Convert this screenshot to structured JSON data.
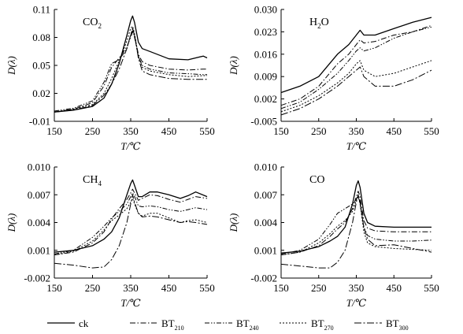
{
  "chart_data": [
    {
      "type": "line",
      "title": "CO2",
      "title_parts": {
        "main": "CO",
        "sub": "2"
      },
      "xlabel": "T/℃",
      "ylabel": "D(λ)",
      "xlim": [
        150,
        550
      ],
      "ylim": [
        -0.01,
        0.11
      ],
      "xticks": [
        "150",
        "250",
        "350",
        "450",
        "550"
      ],
      "yticks": [
        "-0.01",
        "0.02",
        "0.05",
        "0.08",
        "0.11"
      ],
      "x": [
        150,
        200,
        250,
        280,
        300,
        320,
        340,
        350,
        355,
        360,
        370,
        380,
        400,
        450,
        500,
        540,
        550
      ],
      "series": [
        {
          "name": "ck",
          "dash": "solid",
          "values": [
            0.0,
            0.002,
            0.006,
            0.015,
            0.03,
            0.052,
            0.082,
            0.098,
            0.103,
            0.096,
            0.075,
            0.068,
            0.065,
            0.057,
            0.056,
            0.06,
            0.058
          ]
        },
        {
          "name": "BT210",
          "dash": "dashdot",
          "values": [
            0.0,
            0.003,
            0.01,
            0.028,
            0.048,
            0.058,
            0.07,
            0.08,
            0.086,
            0.082,
            0.062,
            0.054,
            0.05,
            0.046,
            0.045,
            0.046,
            0.046
          ]
        },
        {
          "name": "BT240",
          "dash": "dashdotdot",
          "values": [
            0.001,
            0.004,
            0.012,
            0.032,
            0.052,
            0.056,
            0.068,
            0.083,
            0.088,
            0.08,
            0.06,
            0.05,
            0.046,
            0.042,
            0.041,
            0.04,
            0.04
          ]
        },
        {
          "name": "BT270",
          "dash": "dotted",
          "values": [
            0.0,
            0.003,
            0.008,
            0.02,
            0.036,
            0.055,
            0.076,
            0.09,
            0.092,
            0.084,
            0.06,
            0.048,
            0.044,
            0.04,
            0.038,
            0.039,
            0.039
          ]
        },
        {
          "name": "BT300",
          "dash": "longdash",
          "values": [
            0.0,
            0.002,
            0.007,
            0.018,
            0.03,
            0.046,
            0.068,
            0.083,
            0.09,
            0.082,
            0.058,
            0.044,
            0.04,
            0.036,
            0.035,
            0.035,
            0.035
          ]
        }
      ]
    },
    {
      "type": "line",
      "title": "H2O",
      "title_parts": {
        "main": "H",
        "sub": "2",
        "rest": "O"
      },
      "xlabel": "T/℃",
      "ylabel": "D(λ)",
      "xlim": [
        150,
        550
      ],
      "ylim": [
        -0.005,
        0.03
      ],
      "xticks": [
        "150",
        "250",
        "350",
        "450",
        "550"
      ],
      "yticks": [
        "-0.005",
        "0.002",
        "0.009",
        "0.016",
        "0.023",
        "0.030"
      ],
      "x": [
        150,
        200,
        250,
        300,
        330,
        350,
        360,
        370,
        400,
        450,
        500,
        550
      ],
      "series": [
        {
          "name": "ck",
          "dash": "solid",
          "values": [
            0.004,
            0.006,
            0.009,
            0.016,
            0.019,
            0.022,
            0.0235,
            0.022,
            0.022,
            0.024,
            0.026,
            0.0275
          ]
        },
        {
          "name": "BT210",
          "dash": "dashdot",
          "values": [
            0.0,
            0.002,
            0.006,
            0.013,
            0.016,
            0.019,
            0.0205,
            0.0195,
            0.02,
            0.022,
            0.023,
            0.025
          ]
        },
        {
          "name": "BT240",
          "dash": "dashdotdot",
          "values": [
            -0.001,
            0.001,
            0.005,
            0.01,
            0.014,
            0.017,
            0.018,
            0.017,
            0.018,
            0.021,
            0.023,
            0.0245
          ]
        },
        {
          "name": "BT270",
          "dash": "dotted",
          "values": [
            -0.002,
            0.0,
            0.003,
            0.007,
            0.01,
            0.013,
            0.014,
            0.011,
            0.009,
            0.01,
            0.012,
            0.014
          ]
        },
        {
          "name": "BT300",
          "dash": "longdash",
          "values": [
            -0.003,
            -0.001,
            0.002,
            0.006,
            0.009,
            0.011,
            0.012,
            0.009,
            0.006,
            0.006,
            0.008,
            0.011
          ]
        }
      ]
    },
    {
      "type": "line",
      "title": "CH4",
      "title_parts": {
        "main": "CH",
        "sub": "4"
      },
      "xlabel": "T/℃",
      "ylabel": "D(λ)",
      "xlim": [
        150,
        550
      ],
      "ylim": [
        -0.002,
        0.01
      ],
      "xticks": [
        "150",
        "250",
        "350",
        "450",
        "550"
      ],
      "yticks": [
        "-0.002",
        "0.001",
        "0.004",
        "0.007",
        "0.010"
      ],
      "x": [
        150,
        200,
        250,
        280,
        300,
        320,
        340,
        350,
        355,
        360,
        370,
        380,
        400,
        420,
        450,
        480,
        500,
        520,
        550
      ],
      "series": [
        {
          "name": "ck",
          "dash": "solid",
          "values": [
            0.0008,
            0.001,
            0.0015,
            0.0022,
            0.003,
            0.0045,
            0.007,
            0.0082,
            0.0086,
            0.008,
            0.0068,
            0.0068,
            0.0073,
            0.0073,
            0.007,
            0.0066,
            0.0069,
            0.0073,
            0.0068
          ]
        },
        {
          "name": "BT210",
          "dash": "dashdot",
          "values": [
            0.0005,
            0.0008,
            0.0018,
            0.003,
            0.0044,
            0.0055,
            0.0065,
            0.0072,
            0.0076,
            0.0072,
            0.0064,
            0.0066,
            0.007,
            0.0069,
            0.0065,
            0.0062,
            0.0065,
            0.0068,
            0.0066
          ]
        },
        {
          "name": "BT240",
          "dash": "dashdotdot",
          "values": [
            0.0006,
            0.001,
            0.0024,
            0.0036,
            0.0045,
            0.0052,
            0.006,
            0.0068,
            0.0072,
            0.0068,
            0.0058,
            0.0057,
            0.0058,
            0.0057,
            0.0054,
            0.0052,
            0.0054,
            0.0056,
            0.0054
          ]
        },
        {
          "name": "BT270",
          "dash": "dotted",
          "values": [
            0.0005,
            0.0009,
            0.002,
            0.0032,
            0.0042,
            0.0048,
            0.0055,
            0.0062,
            0.0066,
            0.006,
            0.005,
            0.0047,
            0.005,
            0.005,
            0.0045,
            0.004,
            0.0042,
            0.0043,
            0.004
          ]
        },
        {
          "name": "BT300",
          "dash": "longdash",
          "values": [
            -0.0004,
            -0.0006,
            -0.0009,
            -0.0008,
            0.0,
            0.0015,
            0.004,
            0.006,
            0.007,
            0.0062,
            0.005,
            0.0046,
            0.0047,
            0.0046,
            0.0043,
            0.004,
            0.0041,
            0.004,
            0.0038
          ]
        }
      ]
    },
    {
      "type": "line",
      "title": "CO",
      "title_parts": {
        "main": "CO"
      },
      "xlabel": "T/℃",
      "ylabel": "D(λ)",
      "xlim": [
        150,
        550
      ],
      "ylim": [
        -0.002,
        0.01
      ],
      "xticks": [
        "150",
        "250",
        "350",
        "450",
        "550"
      ],
      "yticks": [
        "-0.002",
        "0.001",
        "0.004",
        "0.007",
        "0.010"
      ],
      "x": [
        150,
        200,
        250,
        280,
        300,
        320,
        340,
        350,
        355,
        360,
        370,
        380,
        400,
        450,
        500,
        550
      ],
      "series": [
        {
          "name": "ck",
          "dash": "solid",
          "values": [
            0.0007,
            0.0009,
            0.0014,
            0.002,
            0.0025,
            0.0035,
            0.006,
            0.008,
            0.0085,
            0.0078,
            0.005,
            0.004,
            0.0036,
            0.0035,
            0.0035,
            0.0035
          ]
        },
        {
          "name": "BT210",
          "dash": "dashdot",
          "values": [
            0.0005,
            0.0008,
            0.0015,
            0.0025,
            0.0033,
            0.004,
            0.0055,
            0.0068,
            0.0074,
            0.0068,
            0.0042,
            0.0034,
            0.0031,
            0.003,
            0.003,
            0.003
          ]
        },
        {
          "name": "BT240",
          "dash": "dashdotdot",
          "values": [
            0.0006,
            0.001,
            0.0022,
            0.0038,
            0.005,
            0.0055,
            0.006,
            0.0065,
            0.007,
            0.0063,
            0.0035,
            0.0026,
            0.0022,
            0.002,
            0.002,
            0.0021
          ]
        },
        {
          "name": "BT270",
          "dash": "dotted",
          "values": [
            0.0005,
            0.0008,
            0.0018,
            0.0028,
            0.0036,
            0.0042,
            0.0052,
            0.0064,
            0.0068,
            0.006,
            0.003,
            0.0018,
            0.0014,
            0.0012,
            0.0011,
            0.001
          ]
        },
        {
          "name": "BT300",
          "dash": "longdash",
          "values": [
            -0.0005,
            -0.0007,
            -0.0009,
            -0.0009,
            -0.0003,
            0.001,
            0.004,
            0.0062,
            0.007,
            0.006,
            0.0035,
            0.0022,
            0.0015,
            0.0016,
            0.0012,
            0.0008
          ]
        }
      ]
    }
  ],
  "legend": [
    {
      "label": "ck",
      "sub": "",
      "dash": "solid"
    },
    {
      "label": "BT",
      "sub": "210",
      "dash": "dashdot"
    },
    {
      "label": "BT",
      "sub": "240",
      "dash": "dashdotdot"
    },
    {
      "label": "BT",
      "sub": "270",
      "dash": "dotted"
    },
    {
      "label": "BT",
      "sub": "300",
      "dash": "longdash"
    }
  ]
}
